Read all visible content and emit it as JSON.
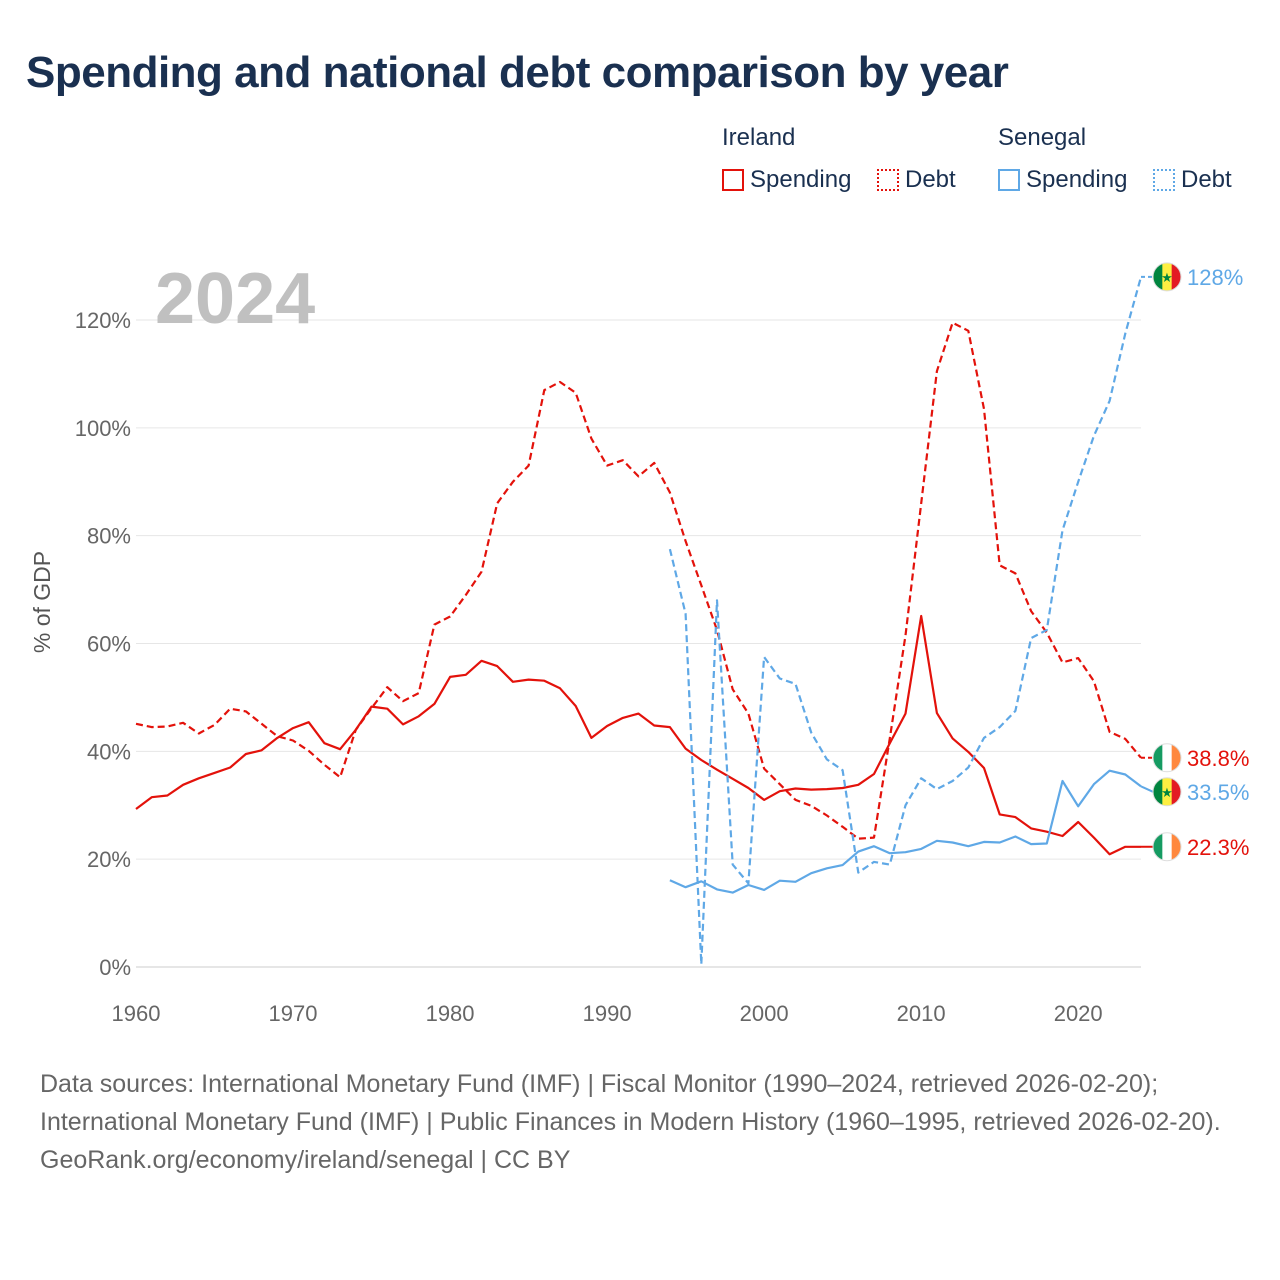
{
  "title": "Spending and national debt comparison by year",
  "legend": {
    "groups": [
      {
        "country": "Ireland",
        "items": [
          "Spending",
          "Debt"
        ]
      },
      {
        "country": "Senegal",
        "items": [
          "Spending",
          "Debt"
        ]
      }
    ]
  },
  "year_label": "2024",
  "colors": {
    "ireland": "#e3120b",
    "senegal": "#5fa8e6",
    "title": "#1a3050",
    "year": "#c0c0c0"
  },
  "footer": {
    "sources": "Data sources: International Monetary Fund (IMF) | Fiscal Monitor (1990–2024, retrieved 2026-02-20); International Monetary Fund (IMF) | Public Finances in Modern History (1960–1995, retrieved 2026-02-20).",
    "credit": "GeoRank.org/economy/ireland/senegal | CC BY"
  },
  "chart_data": {
    "type": "line",
    "title": "Spending and national debt comparison by year",
    "xlabel": "",
    "ylabel": "% of GDP",
    "xlim": [
      1960,
      2024
    ],
    "ylim": [
      0,
      130
    ],
    "x_ticks": [
      1960,
      1970,
      1980,
      1990,
      2000,
      2010,
      2020
    ],
    "y_ticks": [
      0,
      20,
      40,
      60,
      80,
      100,
      120
    ],
    "y_tick_labels": [
      "0%",
      "20%",
      "40%",
      "60%",
      "80%",
      "100%",
      "120%"
    ],
    "series": [
      {
        "name": "Ireland Spending",
        "country": "Ireland",
        "style": "solid",
        "end_label": "22.3%",
        "flag": "ireland",
        "x": [
          1960,
          1961,
          1962,
          1963,
          1964,
          1965,
          1966,
          1967,
          1968,
          1969,
          1970,
          1971,
          1972,
          1973,
          1974,
          1975,
          1976,
          1977,
          1978,
          1979,
          1980,
          1981,
          1982,
          1983,
          1984,
          1985,
          1986,
          1987,
          1988,
          1989,
          1990,
          1991,
          1992,
          1993,
          1994,
          1995,
          1996,
          1997,
          1998,
          1999,
          2000,
          2001,
          2002,
          2003,
          2004,
          2005,
          2006,
          2007,
          2008,
          2009,
          2010,
          2011,
          2012,
          2013,
          2014,
          2015,
          2016,
          2017,
          2018,
          2019,
          2020,
          2021,
          2022,
          2023,
          2024
        ],
        "values": [
          29.3,
          31.5,
          31.8,
          33.8,
          35.0,
          36.0,
          37.0,
          39.5,
          40.2,
          42.5,
          44.3,
          45.4,
          41.5,
          40.4,
          44.0,
          48.3,
          47.9,
          45.0,
          46.5,
          48.8,
          53.8,
          54.2,
          56.8,
          55.8,
          52.9,
          53.3,
          53.1,
          51.7,
          48.4,
          42.5,
          44.7,
          46.2,
          47.0,
          44.8,
          44.5,
          40.5,
          38.4,
          36.6,
          34.9,
          33.2,
          31.0,
          32.6,
          33.1,
          32.9,
          33.0,
          33.2,
          33.8,
          35.8,
          41.5,
          47.0,
          65.1,
          47.1,
          42.4,
          39.9,
          36.9,
          28.3,
          27.8,
          25.7,
          25.1,
          24.3,
          26.9,
          24.0,
          20.9,
          22.3,
          22.3
        ]
      },
      {
        "name": "Ireland Debt",
        "country": "Ireland",
        "style": "dashed",
        "end_label": "38.8%",
        "flag": "ireland",
        "x": [
          1960,
          1961,
          1962,
          1963,
          1964,
          1965,
          1966,
          1967,
          1968,
          1969,
          1970,
          1971,
          1972,
          1973,
          1974,
          1975,
          1976,
          1977,
          1978,
          1979,
          1980,
          1981,
          1982,
          1983,
          1984,
          1985,
          1986,
          1987,
          1988,
          1989,
          1990,
          1991,
          1992,
          1993,
          1994,
          1995,
          1996,
          1997,
          1998,
          1999,
          2000,
          2001,
          2002,
          2003,
          2004,
          2005,
          2006,
          2007,
          2008,
          2009,
          2010,
          2011,
          2012,
          2013,
          2014,
          2015,
          2016,
          2017,
          2018,
          2019,
          2020,
          2021,
          2022,
          2023,
          2024
        ],
        "values": [
          45.1,
          44.5,
          44.6,
          45.3,
          43.3,
          44.9,
          47.9,
          47.4,
          45.1,
          42.8,
          42.0,
          40.1,
          37.5,
          35.2,
          44.0,
          48.0,
          51.9,
          49.3,
          50.8,
          63.5,
          65.0,
          69.0,
          73.3,
          86.0,
          90.0,
          93.0,
          107.0,
          108.5,
          106.5,
          98.0,
          93.0,
          94.0,
          91.0,
          93.5,
          88.0,
          79.0,
          70.8,
          62.5,
          51.5,
          47.0,
          36.8,
          33.9,
          31.0,
          29.9,
          28.1,
          26.0,
          23.8,
          24.0,
          42.4,
          61.5,
          86.0,
          110.5,
          119.5,
          118.0,
          103.5,
          74.5,
          73.0,
          66.0,
          62.0,
          56.5,
          57.3,
          53.0,
          43.6,
          42.3,
          38.8
        ]
      },
      {
        "name": "Senegal Spending",
        "country": "Senegal",
        "style": "solid",
        "end_label": "33.5%",
        "flag": "senegal",
        "x": [
          1994,
          1995,
          1996,
          1997,
          1998,
          1999,
          2000,
          2001,
          2002,
          2003,
          2004,
          2005,
          2006,
          2007,
          2008,
          2009,
          2010,
          2011,
          2012,
          2013,
          2014,
          2015,
          2016,
          2017,
          2018,
          2019,
          2020,
          2021,
          2022,
          2023,
          2024
        ],
        "values": [
          16.1,
          14.8,
          15.9,
          14.4,
          13.8,
          15.2,
          14.3,
          16.0,
          15.8,
          17.4,
          18.3,
          18.9,
          21.4,
          22.4,
          21.1,
          21.3,
          21.9,
          23.4,
          23.1,
          22.4,
          23.2,
          23.1,
          24.2,
          22.8,
          22.9,
          34.5,
          29.8,
          33.9,
          36.4,
          35.7,
          33.5
        ]
      },
      {
        "name": "Senegal Debt",
        "country": "Senegal",
        "style": "dashed",
        "end_label": "128%",
        "flag": "senegal",
        "x": [
          1994,
          1995,
          1996,
          1997,
          1998,
          1999,
          2000,
          2001,
          2002,
          2003,
          2004,
          2005,
          2006,
          2007,
          2008,
          2009,
          2010,
          2011,
          2012,
          2013,
          2014,
          2015,
          2016,
          2017,
          2018,
          2019,
          2020,
          2021,
          2022,
          2023,
          2024
        ],
        "values": [
          77.5,
          65.5,
          0.5,
          68.0,
          19.0,
          15.5,
          57.5,
          53.5,
          52.5,
          43.5,
          38.5,
          36.5,
          17.5,
          19.5,
          19.0,
          30.0,
          35.0,
          33.0,
          34.5,
          37.0,
          42.5,
          44.5,
          47.5,
          61.0,
          62.5,
          81.0,
          90.0,
          98.5,
          105.0,
          117.5,
          128.0
        ]
      }
    ]
  }
}
